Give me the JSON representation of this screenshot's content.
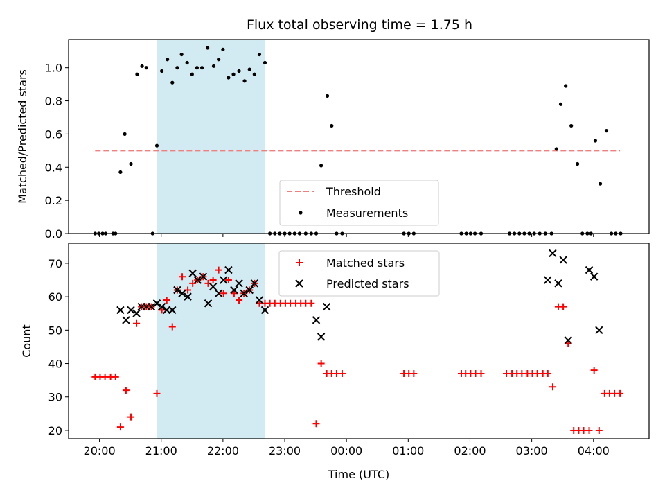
{
  "title": "Flux total observing time = 1.75 h",
  "colors": {
    "threshold": "#f08080",
    "shade": "#add8e6",
    "measurement": "#000000",
    "matched": "#ff0000",
    "predicted": "#000000"
  },
  "chart_data": [
    {
      "type": "scatter",
      "panel": "top",
      "xlabel": "",
      "ylabel": "Matched/Predicted stars",
      "xlim": [
        19.5,
        28.9
      ],
      "ylim": [
        0.0,
        1.17
      ],
      "yticks": [
        0.0,
        0.2,
        0.4,
        0.6,
        0.8,
        1.0
      ],
      "ytick_labels": [
        "0.0",
        "0.2",
        "0.4",
        "0.6",
        "0.8",
        "1.0"
      ],
      "xticks": [
        20,
        21,
        22,
        23,
        24,
        25,
        26,
        27,
        28
      ],
      "shaded_span": [
        20.93,
        22.68
      ],
      "threshold": {
        "name": "Threshold",
        "y": 0.5,
        "x": [
          19.93,
          28.43
        ]
      },
      "legend": {
        "placement": "lower center",
        "entries": [
          "Threshold",
          "Measurements"
        ]
      },
      "series": [
        {
          "name": "Measurements",
          "marker": "dot",
          "x": [
            19.93,
            19.99,
            20.05,
            20.1,
            20.22,
            20.26,
            20.34,
            20.41,
            20.51,
            20.61,
            20.69,
            20.76,
            20.86,
            20.93,
            21.01,
            21.1,
            21.18,
            21.26,
            21.33,
            21.42,
            21.5,
            21.58,
            21.66,
            21.75,
            21.85,
            21.93,
            22.0,
            22.09,
            22.17,
            22.26,
            22.35,
            22.43,
            22.51,
            22.59,
            22.68,
            22.76,
            22.84,
            22.92,
            23.0,
            23.08,
            23.16,
            23.24,
            23.34,
            23.43,
            23.51,
            23.59,
            23.69,
            23.76,
            23.84,
            23.93,
            24.93,
            25.01,
            25.09,
            25.86,
            25.94,
            26.01,
            26.08,
            26.18,
            26.64,
            26.72,
            26.8,
            26.88,
            26.96,
            27.04,
            27.13,
            27.22,
            27.32,
            27.4,
            27.47,
            27.55,
            27.64,
            27.74,
            27.82,
            27.9,
            27.96,
            28.03,
            28.11,
            28.21,
            28.29,
            28.36,
            28.44
          ],
          "y": [
            0,
            0,
            0,
            0,
            0,
            0,
            0.37,
            0.6,
            0.42,
            0.96,
            1.01,
            1.0,
            0,
            0.53,
            0.98,
            1.05,
            0.91,
            1.0,
            1.08,
            1.03,
            0.96,
            1.0,
            1.0,
            1.12,
            1.01,
            1.05,
            1.11,
            0.94,
            0.96,
            0.98,
            0.92,
            0.99,
            0.96,
            1.08,
            1.03,
            0,
            0,
            0,
            0,
            0,
            0,
            0,
            0,
            0,
            0,
            0.41,
            0.83,
            0.65,
            0,
            0,
            0,
            0,
            0,
            0,
            0,
            0,
            0,
            0,
            0,
            0,
            0,
            0,
            0,
            0,
            0,
            0,
            0,
            0.51,
            0.78,
            0.89,
            0.65,
            0.42,
            0,
            0,
            0,
            0.56,
            0.3,
            0.62,
            0,
            0,
            0
          ]
        }
      ]
    },
    {
      "type": "scatter",
      "panel": "bottom",
      "xlabel": "Time (UTC)",
      "ylabel": "Count",
      "xlim": [
        19.5,
        28.9
      ],
      "ylim": [
        17.5,
        76.0
      ],
      "yticks": [
        20,
        30,
        40,
        50,
        60,
        70
      ],
      "ytick_labels": [
        "20",
        "30",
        "40",
        "50",
        "60",
        "70"
      ],
      "xticks": [
        20,
        21,
        22,
        23,
        24,
        25,
        26,
        27,
        28
      ],
      "xtick_labels": [
        "20:00",
        "21:00",
        "22:00",
        "23:00",
        "00:00",
        "01:00",
        "02:00",
        "03:00",
        "04:00"
      ],
      "shaded_span": [
        20.93,
        22.68
      ],
      "legend": {
        "placement": "upper center",
        "entries": [
          "Matched stars",
          "Predicted stars"
        ]
      },
      "series": [
        {
          "name": "Matched stars",
          "marker": "plus",
          "x": [
            19.93,
            20.01,
            20.09,
            20.18,
            20.26,
            20.34,
            20.43,
            20.51,
            20.6,
            20.68,
            20.76,
            20.84,
            20.93,
            21.01,
            21.09,
            21.18,
            21.26,
            21.34,
            21.43,
            21.51,
            21.59,
            21.68,
            21.76,
            21.84,
            21.93,
            22.01,
            22.09,
            22.18,
            22.26,
            22.34,
            22.43,
            22.51,
            22.59,
            22.68,
            22.76,
            22.84,
            22.93,
            23.01,
            23.09,
            23.18,
            23.26,
            23.34,
            23.43,
            23.51,
            23.59,
            23.68,
            23.76,
            23.84,
            23.93,
            24.93,
            25.01,
            25.09,
            25.86,
            25.93,
            26.01,
            26.09,
            26.18,
            26.59,
            26.68,
            26.76,
            26.84,
            26.93,
            27.01,
            27.09,
            27.18,
            27.26,
            27.34,
            27.43,
            27.51,
            27.59,
            27.68,
            27.76,
            27.84,
            27.93,
            28.01,
            28.09,
            28.18,
            28.26,
            28.34,
            28.43
          ],
          "y": [
            36,
            36,
            36,
            36,
            36,
            21,
            32,
            24,
            52,
            57,
            57,
            57,
            31,
            56,
            59,
            51,
            62,
            66,
            62,
            64,
            65,
            66,
            64,
            65,
            68,
            61,
            65,
            61,
            59,
            61,
            62,
            64,
            58,
            58,
            58,
            58,
            58,
            58,
            58,
            58,
            58,
            58,
            58,
            22,
            40,
            37,
            37,
            37,
            37,
            37,
            37,
            37,
            37,
            37,
            37,
            37,
            37,
            37,
            37,
            37,
            37,
            37,
            37,
            37,
            37,
            37,
            33,
            57,
            57,
            46,
            20,
            20,
            20,
            20,
            38,
            20,
            31,
            31,
            31,
            31
          ]
        },
        {
          "name": "Predicted stars",
          "marker": "x",
          "x": [
            20.34,
            20.43,
            20.51,
            20.6,
            20.68,
            20.76,
            20.84,
            20.93,
            21.01,
            21.09,
            21.18,
            21.26,
            21.34,
            21.43,
            21.51,
            21.59,
            21.68,
            21.76,
            21.84,
            21.93,
            22.01,
            22.09,
            22.18,
            22.26,
            22.34,
            22.43,
            22.51,
            22.59,
            22.68,
            23.51,
            23.59,
            23.68,
            27.26,
            27.34,
            27.43,
            27.51,
            27.59,
            27.93,
            28.01,
            28.09
          ],
          "y": [
            56,
            53,
            56,
            55,
            57,
            57,
            57,
            58,
            57,
            56,
            56,
            62,
            61,
            60,
            67,
            65,
            66,
            58,
            63,
            61,
            65,
            68,
            62,
            64,
            61,
            62,
            64,
            59,
            56,
            53,
            48,
            57,
            65,
            73,
            64,
            71,
            47,
            68,
            66,
            50
          ]
        }
      ]
    }
  ]
}
